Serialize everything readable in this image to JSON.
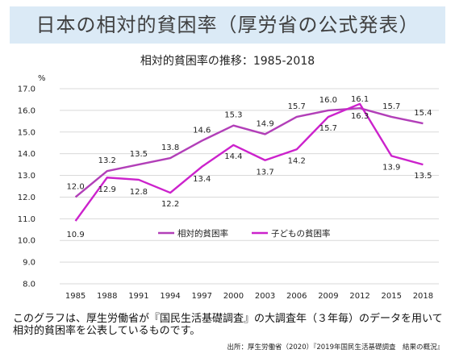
{
  "banner": {
    "title": "日本の相対的貧困率（厚労省の公式発表）"
  },
  "caption": "このグラフは、厚生労働省が『国民生活基礎調査』の大調査年（３年毎）のデータを用いて相対的貧困率を公表しているものです。",
  "source": "出所：厚生労働省（2020）『2019年国民生活基礎調査　結果の概況』",
  "chart_data": {
    "type": "line",
    "title": "相対的貧困率の推移：1985-2018",
    "ylabel": "%",
    "xlabel": "",
    "categories": [
      "1985",
      "1988",
      "1991",
      "1994",
      "1997",
      "2000",
      "2003",
      "2006",
      "2009",
      "2012",
      "2015",
      "2018"
    ],
    "ylim": [
      8.0,
      17.0
    ],
    "yticks": [
      "8.0",
      "9.0",
      "10.0",
      "11.0",
      "12.0",
      "13.0",
      "14.0",
      "15.0",
      "16.0",
      "17.0"
    ],
    "grid": "horizontal",
    "legend_position": "center",
    "series": [
      {
        "name": "相対的貧困率",
        "color": "#b23fb8",
        "values": [
          12.0,
          13.2,
          13.5,
          13.8,
          14.6,
          15.3,
          14.9,
          15.7,
          16.0,
          16.1,
          15.7,
          15.4
        ],
        "labels": [
          "12.0",
          "13.2",
          "13.5",
          "13.8",
          "14.6",
          "15.3",
          "14.9",
          "15.7",
          "16.0",
          "16.1",
          "15.7",
          "15.4"
        ]
      },
      {
        "name": "子どもの貧困率",
        "color": "#cc22cc",
        "values": [
          10.9,
          12.9,
          12.8,
          12.2,
          13.4,
          14.4,
          13.7,
          14.2,
          15.7,
          16.3,
          13.9,
          13.5
        ],
        "labels": [
          "10.9",
          "12.9",
          "12.8",
          "12.2",
          "13.4",
          "14.4",
          "13.7",
          "14.2",
          "15.7",
          "16.3",
          "13.9",
          "13.5"
        ]
      }
    ]
  }
}
